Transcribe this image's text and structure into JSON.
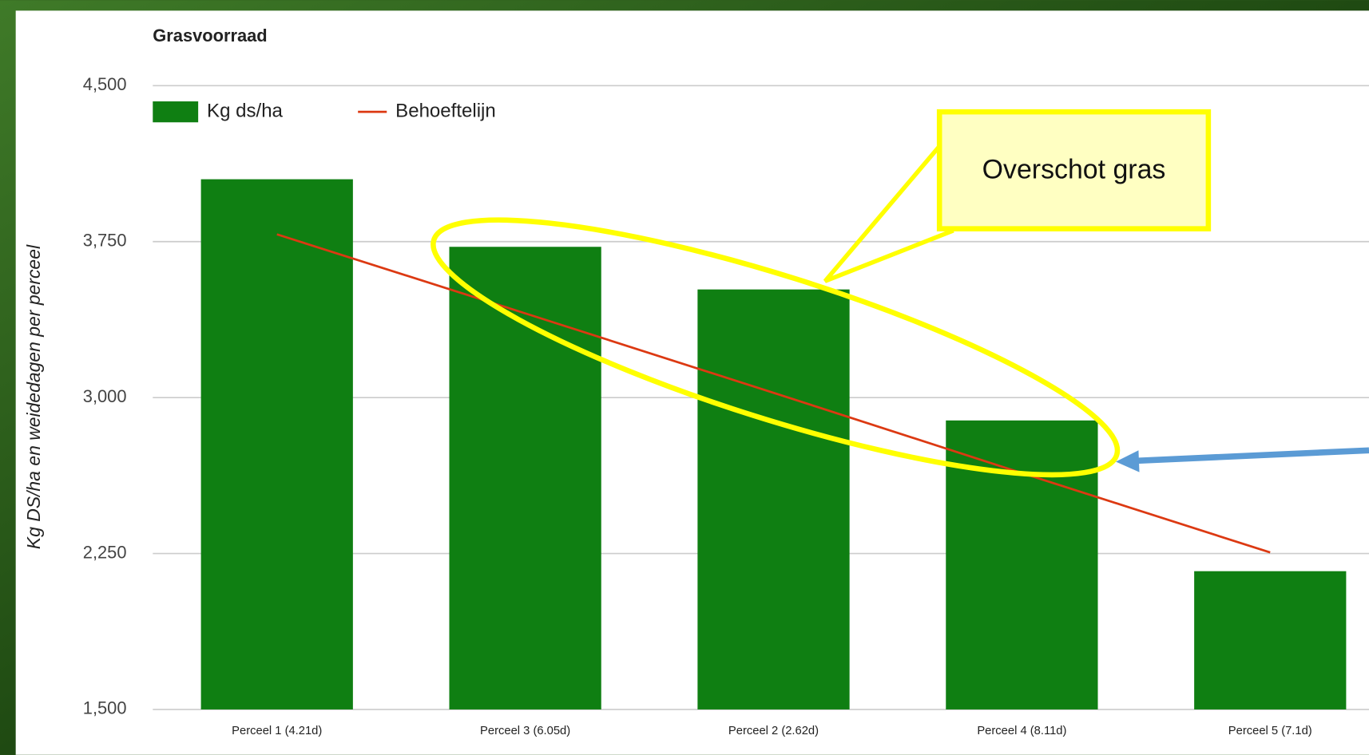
{
  "chart_data": {
    "type": "bar",
    "title": "Grasvoorraad",
    "y_label": "Kg DS/ha en weidedagen per perceel",
    "categories": [
      "Perceel 1 (4.21d)",
      "Perceel 3 (6.05d)",
      "Perceel 2 (2.62d)",
      "Perceel 4 (8.11d)",
      "Perceel 5 (7.1d)"
    ],
    "series": [
      {
        "name": "Kg ds/ha",
        "type": "bar",
        "color": "#0f7f12",
        "values": [
          4050,
          3725,
          3520,
          2890,
          2165
        ]
      },
      {
        "name": "Behoeftelijn",
        "type": "line",
        "color": "#dc3912",
        "values": [
          3785,
          3405,
          3023,
          2637,
          2255
        ]
      }
    ],
    "ylim": [
      1500,
      4500
    ],
    "yticks": [
      {
        "value": 1500,
        "label": "1,500"
      },
      {
        "value": 2250,
        "label": "2,250"
      },
      {
        "value": 3000,
        "label": "3,000"
      },
      {
        "value": 3750,
        "label": "3,750"
      },
      {
        "value": 4500,
        "label": "4,500"
      }
    ],
    "grid": true,
    "legend": "top-left",
    "annotation": "Overschot gras"
  }
}
